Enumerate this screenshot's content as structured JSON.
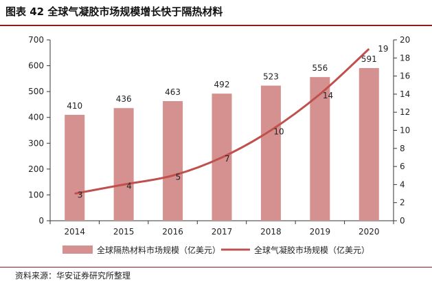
{
  "figure": {
    "title": "图表 42  全球气凝胶市场规模增长快于隔热材料",
    "source": "资料来源：华安证券研究所整理"
  },
  "chart_data": {
    "type": "bar+line",
    "categories": [
      "2014",
      "2015",
      "2016",
      "2017",
      "2018",
      "2019",
      "2020"
    ],
    "series": [
      {
        "name": "全球隔热材料市场规模（亿美元）",
        "type": "bar",
        "axis": "left",
        "values": [
          410,
          436,
          463,
          492,
          523,
          556,
          591
        ],
        "labels": [
          "410",
          "436",
          "463",
          "492",
          "523",
          "556",
          "591"
        ],
        "color": "#d4918f"
      },
      {
        "name": "全球气凝胶市场规模（亿美元）",
        "type": "line",
        "axis": "right",
        "values": [
          3,
          4,
          5,
          7,
          10,
          14,
          19
        ],
        "labels": [
          "3",
          "4",
          "5",
          "7",
          "10",
          "14",
          "19"
        ],
        "color": "#c0504d"
      }
    ],
    "y_left": {
      "min": 0,
      "max": 700,
      "ticks": [
        "0",
        "100",
        "200",
        "300",
        "400",
        "500",
        "600",
        "700"
      ]
    },
    "y_right": {
      "min": 0,
      "max": 20,
      "ticks": [
        "0",
        "2",
        "4",
        "6",
        "8",
        "10",
        "12",
        "14",
        "16",
        "18",
        "20"
      ]
    },
    "legend_position": "bottom",
    "grid": false
  }
}
